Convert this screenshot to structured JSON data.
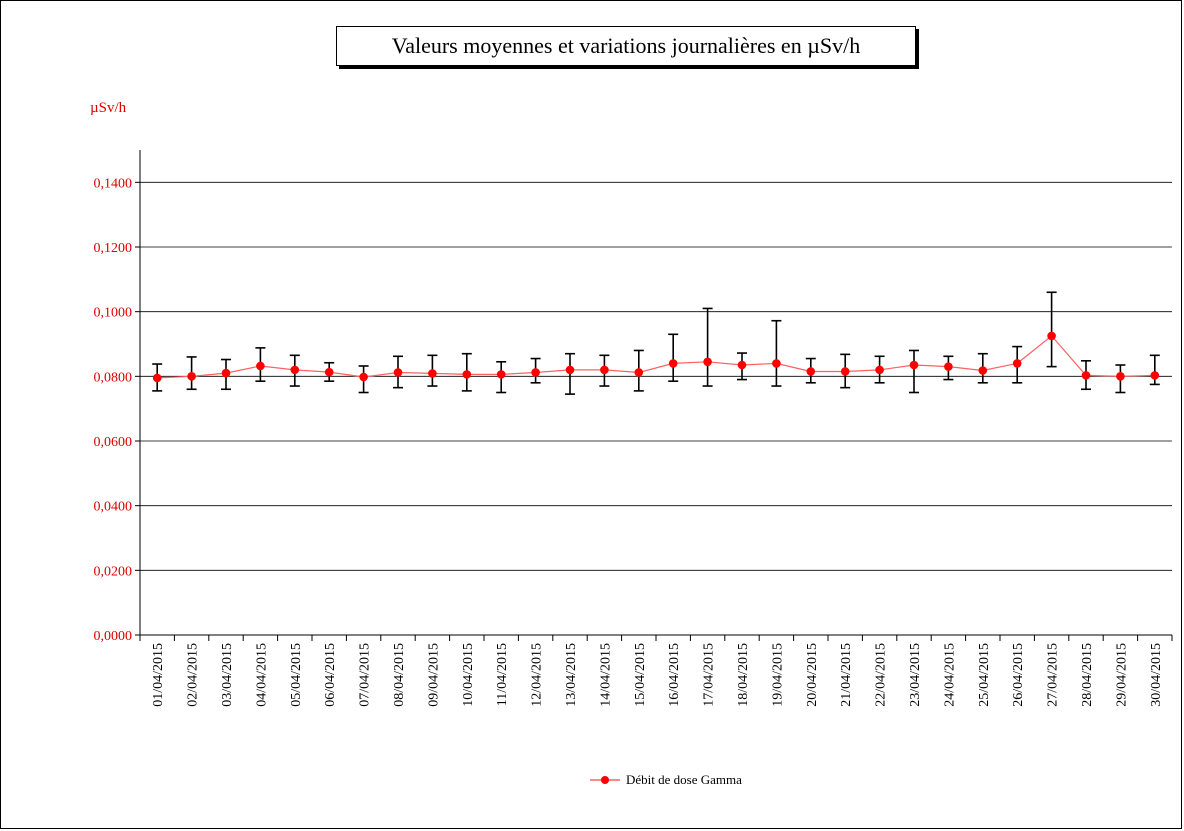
{
  "chart_data": {
    "type": "line",
    "title": "Valeurs moyennes et variations journalières en µSv/h",
    "ylabel": "µSv/h",
    "xlabel": "",
    "ylim": [
      0,
      0.15
    ],
    "yticks": [
      "0,0000",
      "0,0200",
      "0,0400",
      "0,0600",
      "0,0800",
      "0,1000",
      "0,1200",
      "0,1400"
    ],
    "ytick_values": [
      0,
      0.02,
      0.04,
      0.06,
      0.08,
      0.1,
      0.12,
      0.14
    ],
    "grid": true,
    "legend_placement": "bottom",
    "line_color": "#ff6060",
    "marker_color": "#ff0000",
    "categories": [
      "01/04/2015",
      "02/04/2015",
      "03/04/2015",
      "04/04/2015",
      "05/04/2015",
      "06/04/2015",
      "07/04/2015",
      "08/04/2015",
      "09/04/2015",
      "10/04/2015",
      "11/04/2015",
      "12/04/2015",
      "13/04/2015",
      "14/04/2015",
      "15/04/2015",
      "16/04/2015",
      "17/04/2015",
      "18/04/2015",
      "19/04/2015",
      "20/04/2015",
      "21/04/2015",
      "22/04/2015",
      "23/04/2015",
      "24/04/2015",
      "25/04/2015",
      "26/04/2015",
      "27/04/2015",
      "28/04/2015",
      "29/04/2015",
      "30/04/2015"
    ],
    "series": [
      {
        "name": "Débit de dose Gamma",
        "values": [
          0.0795,
          0.08,
          0.081,
          0.0832,
          0.082,
          0.0813,
          0.0798,
          0.0812,
          0.0809,
          0.0806,
          0.0806,
          0.0812,
          0.082,
          0.082,
          0.0812,
          0.084,
          0.0845,
          0.0835,
          0.084,
          0.0815,
          0.0815,
          0.082,
          0.0835,
          0.083,
          0.0818,
          0.084,
          0.0925,
          0.0803,
          0.08,
          0.0803
        ],
        "min": [
          0.0755,
          0.076,
          0.076,
          0.0785,
          0.077,
          0.0785,
          0.075,
          0.0765,
          0.077,
          0.0755,
          0.075,
          0.078,
          0.0745,
          0.077,
          0.0755,
          0.0785,
          0.077,
          0.079,
          0.077,
          0.078,
          0.0765,
          0.078,
          0.075,
          0.079,
          0.078,
          0.078,
          0.083,
          0.076,
          0.075,
          0.0775
        ],
        "max": [
          0.0838,
          0.086,
          0.0852,
          0.0888,
          0.0865,
          0.0842,
          0.0832,
          0.0862,
          0.0865,
          0.087,
          0.0845,
          0.0855,
          0.087,
          0.0865,
          0.088,
          0.093,
          0.101,
          0.0872,
          0.0972,
          0.0855,
          0.0868,
          0.0862,
          0.088,
          0.0862,
          0.087,
          0.0892,
          0.106,
          0.0848,
          0.0835,
          0.0865
        ]
      }
    ]
  }
}
